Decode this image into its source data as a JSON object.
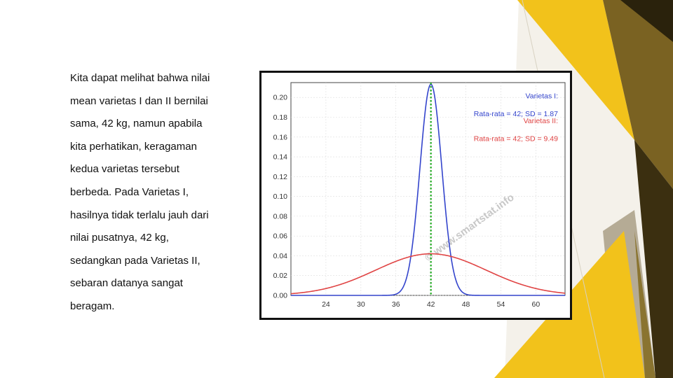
{
  "slide": {
    "paragraph_lines": [
      "Kita dapat melihat bahwa nilai",
      "mean varietas I dan II bernilai",
      "sama, 42 kg, namun apabila",
      "kita perhatikan, keragaman",
      "kedua varietas tersebut",
      "berbeda. Pada Varietas I,",
      "hasilnya tidak terlalu jauh dari",
      "nilai pusatnya, 42 kg,",
      "sedangkan pada Varietas II,",
      "sebaran datanya sangat",
      "beragam."
    ],
    "accent_colors": [
      "#f5c518",
      "#8a6d1d",
      "#3d3010",
      "#b0a080"
    ]
  },
  "chart_data": {
    "type": "line",
    "title": "",
    "xlabel": "",
    "ylabel": "",
    "xlim": [
      18,
      65
    ],
    "ylim": [
      0,
      0.215
    ],
    "x_ticks": [
      "24",
      "30",
      "36",
      "42",
      "48",
      "54",
      "60"
    ],
    "y_ticks": [
      "0.00",
      "0.02",
      "0.04",
      "0.06",
      "0.08",
      "0.10",
      "0.12",
      "0.14",
      "0.16",
      "0.18",
      "0.20"
    ],
    "grid": true,
    "legend_position": "top-right",
    "mean_line": {
      "x": 42,
      "color": "#22aa22",
      "style": "dotted"
    },
    "series": [
      {
        "name": "Varietas I:",
        "detail": "Rata-rata = 42; SD = 1.87",
        "mean": 42,
        "sd": 1.87,
        "color": "#3344cc"
      },
      {
        "name": "Varietas II:",
        "detail": "Rata-rata = 42; SD = 9.49",
        "mean": 42,
        "sd": 9.49,
        "color": "#e04444"
      }
    ],
    "watermark": "© www.smartstat.info"
  }
}
